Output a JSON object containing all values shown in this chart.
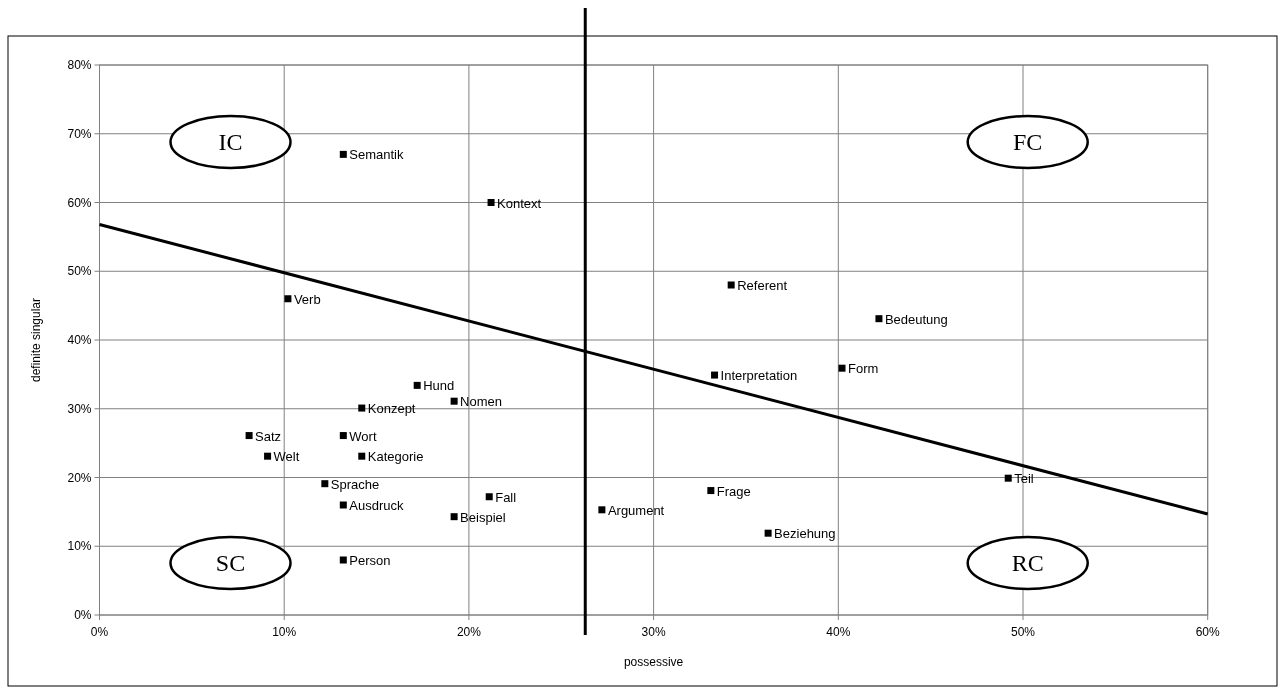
{
  "chart_data": {
    "type": "scatter",
    "xlabel": "possessive",
    "ylabel": "definite singular",
    "xlim": [
      0,
      60
    ],
    "ylim": [
      0,
      80
    ],
    "xticks": [
      {
        "value": 0,
        "label": "0%"
      },
      {
        "value": 10,
        "label": "10%"
      },
      {
        "value": 20,
        "label": "20%"
      },
      {
        "value": 30,
        "label": "30%"
      },
      {
        "value": 40,
        "label": "40%"
      },
      {
        "value": 50,
        "label": "50%"
      },
      {
        "value": 60,
        "label": "60%"
      }
    ],
    "yticks": [
      {
        "value": 0,
        "label": "0%"
      },
      {
        "value": 10,
        "label": "10%"
      },
      {
        "value": 20,
        "label": "20%"
      },
      {
        "value": 30,
        "label": "30%"
      },
      {
        "value": 40,
        "label": "40%"
      },
      {
        "value": 50,
        "label": "50%"
      },
      {
        "value": 60,
        "label": "60%"
      },
      {
        "value": 70,
        "label": "70%"
      },
      {
        "value": 80,
        "label": "80%"
      }
    ],
    "grid": true,
    "marker": "square",
    "series": [
      {
        "color": "#000000",
        "x": [
          13.2,
          21.2,
          10.2,
          17.2,
          19.2,
          14.2,
          8.1,
          13.2,
          9.1,
          14.2,
          12.2,
          13.2,
          21.1,
          19.2,
          13.2,
          27.2,
          33.1,
          36.2,
          49.2,
          33.3,
          40.2,
          34.2,
          42.2
        ],
        "values": [
          67.0,
          60.0,
          46.0,
          33.4,
          31.1,
          30.1,
          26.1,
          26.1,
          23.1,
          23.1,
          19.1,
          16.0,
          17.2,
          14.3,
          8.0,
          15.3,
          18.1,
          11.9,
          19.9,
          34.9,
          35.9,
          48.0,
          43.1
        ]
      },
      {
        "type": "line",
        "color": "#000000",
        "x": [
          0,
          60
        ],
        "values": [
          56.8,
          14.7
        ],
        "marker": "none",
        "line_style": "solid"
      }
    ],
    "ref_lines": [
      {
        "axis": "x",
        "value": 26.3,
        "color": "#000000"
      }
    ],
    "annotations": [
      "IC",
      "FC",
      "SC",
      "RC",
      {
        "text": "Semantik",
        "x": 13.2,
        "y": 67.0
      },
      {
        "text": "Kontext",
        "x": 21.2,
        "y": 60.0
      },
      {
        "text": "Verb",
        "x": 10.2,
        "y": 46.0
      },
      {
        "text": "Hund",
        "x": 17.2,
        "y": 33.4
      },
      {
        "text": "Nomen",
        "x": 19.2,
        "y": 31.1
      },
      {
        "text": "Konzept",
        "x": 14.2,
        "y": 30.1
      },
      {
        "text": "Satz",
        "x": 8.1,
        "y": 26.1
      },
      {
        "text": "Wort",
        "x": 13.2,
        "y": 26.1
      },
      {
        "text": "Welt",
        "x": 9.1,
        "y": 23.1
      },
      {
        "text": "Kategorie",
        "x": 14.2,
        "y": 23.1
      },
      {
        "text": "Sprache",
        "x": 12.2,
        "y": 19.1
      },
      {
        "text": "Ausdruck",
        "x": 13.2,
        "y": 16.0
      },
      {
        "text": "Fall",
        "x": 21.1,
        "y": 17.2
      },
      {
        "text": "Beispiel",
        "x": 19.2,
        "y": 14.3
      },
      {
        "text": "Person",
        "x": 13.2,
        "y": 8.0
      },
      {
        "text": "Argument",
        "x": 27.2,
        "y": 15.3
      },
      {
        "text": "Frage",
        "x": 33.1,
        "y": 18.1
      },
      {
        "text": "Beziehung",
        "x": 36.2,
        "y": 11.9
      },
      {
        "text": "Teil",
        "x": 49.2,
        "y": 19.9
      },
      {
        "text": "Interpretation",
        "x": 33.3,
        "y": 34.9
      },
      {
        "text": "Form",
        "x": 40.2,
        "y": 35.9
      },
      {
        "text": "Referent",
        "x": 34.2,
        "y": 48.0
      },
      {
        "text": "Bedeutung",
        "x": 42.2,
        "y": 43.1
      }
    ]
  }
}
